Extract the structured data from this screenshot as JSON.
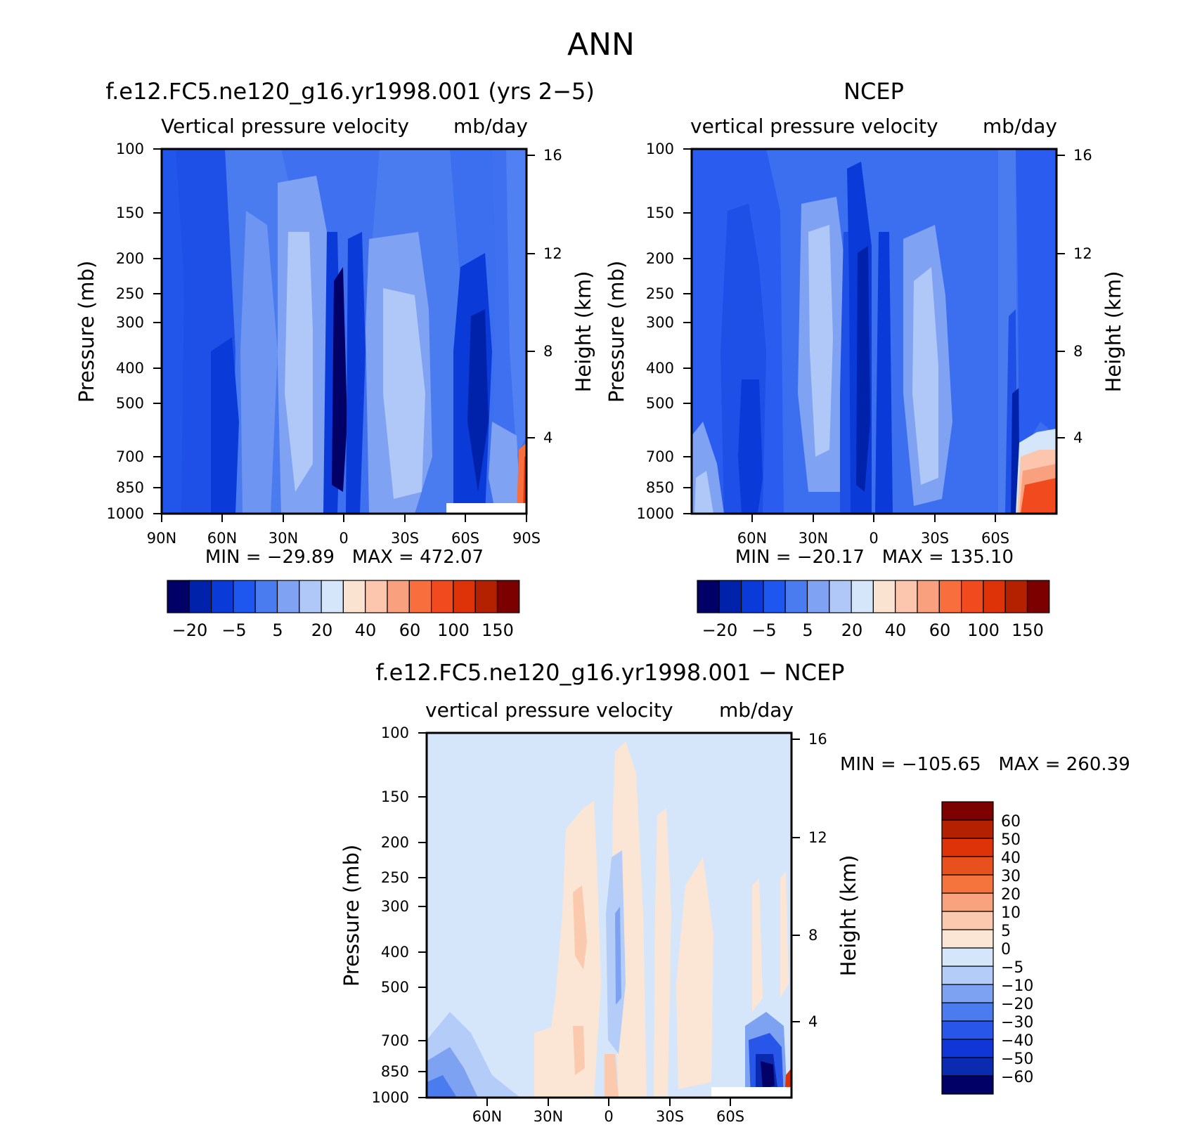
{
  "figure_title": "ANN",
  "colors": {
    "abs_scale": [
      "#000066",
      "#0022aa",
      "#0a3ad8",
      "#1e56f0",
      "#4a7cf0",
      "#7fa2f2",
      "#b0c8f8",
      "#d6e6fa",
      "#fbe3d2",
      "#fbc6ad",
      "#f9a07e",
      "#f86f3d",
      "#f04a1e",
      "#de3308",
      "#b32100",
      "#7d0000"
    ],
    "diff_scale": [
      "#000066",
      "#0a2ab0",
      "#1036d8",
      "#2856e8",
      "#4a7cf0",
      "#7ea2f2",
      "#b4ccf8",
      "#d6e6fa",
      "#fbe6d6",
      "#fbc9ae",
      "#f9a27e",
      "#f5743e",
      "#e8501e",
      "#de3308",
      "#b32100",
      "#7d0000"
    ]
  },
  "chart_data": [
    {
      "type": "contour",
      "title": "f.e12.FC5.ne120_g16.yr1998.001 (yrs 2-5)",
      "subtitle_left": "Vertical pressure velocity",
      "subtitle_right": "mb/day",
      "ylabel": "Pressure (mb)",
      "ylabel_right": "Height (km)",
      "x_ticks": [
        "90N",
        "60N",
        "30N",
        "0",
        "30S",
        "60S",
        "90S"
      ],
      "xlim": [
        90,
        -90
      ],
      "y_ticks": [
        "100",
        "150",
        "200",
        "250",
        "300",
        "400",
        "500",
        "700",
        "850",
        "1000"
      ],
      "ylim": [
        100,
        1000
      ],
      "y_right_ticks": [
        "16",
        "12",
        "8",
        "4"
      ],
      "stats": "MIN = -29.89   MAX = 472.07",
      "colorbar_labels": [
        "-20",
        "-5",
        "5",
        "20",
        "40",
        "60",
        "100",
        "150"
      ],
      "colorbar_levels": [
        -20,
        -10,
        -5,
        0,
        5,
        10,
        20,
        30,
        40,
        50,
        60,
        80,
        100,
        120,
        150
      ]
    },
    {
      "type": "contour",
      "title": "NCEP",
      "subtitle_left": "vertical pressure velocity",
      "subtitle_right": "mb/day",
      "ylabel": "Pressure (mb)",
      "ylabel_right": "Height (km)",
      "x_ticks": [
        "60N",
        "30N",
        "0",
        "30S",
        "60S"
      ],
      "xlim": [
        90,
        -90
      ],
      "y_ticks": [
        "100",
        "150",
        "200",
        "250",
        "300",
        "400",
        "500",
        "700",
        "850",
        "1000"
      ],
      "ylim": [
        100,
        1000
      ],
      "y_right_ticks": [
        "16",
        "12",
        "8",
        "4"
      ],
      "stats": "MIN = -20.17   MAX = 135.10",
      "colorbar_labels": [
        "-20",
        "-5",
        "5",
        "20",
        "40",
        "60",
        "100",
        "150"
      ],
      "colorbar_levels": [
        -20,
        -10,
        -5,
        0,
        5,
        10,
        20,
        30,
        40,
        50,
        60,
        80,
        100,
        120,
        150
      ]
    },
    {
      "type": "contour",
      "title": "f.e12.FC5.ne120_g16.yr1998.001 - NCEP",
      "subtitle_left": "vertical pressure velocity",
      "subtitle_right": "mb/day",
      "ylabel": "Pressure (mb)",
      "ylabel_right": "Height (km)",
      "x_ticks": [
        "60N",
        "30N",
        "0",
        "30S",
        "60S"
      ],
      "xlim": [
        90,
        -90
      ],
      "y_ticks": [
        "100",
        "150",
        "200",
        "250",
        "300",
        "400",
        "500",
        "700",
        "850",
        "1000"
      ],
      "ylim": [
        100,
        1000
      ],
      "y_right_ticks": [
        "16",
        "12",
        "8",
        "4"
      ],
      "stats": "MIN = -105.65   MAX = 260.39",
      "colorbar_labels": [
        "60",
        "50",
        "40",
        "30",
        "20",
        "10",
        "5",
        "0",
        "-5",
        "-10",
        "-20",
        "-30",
        "-40",
        "-50",
        "-60"
      ],
      "colorbar_levels": [
        -60,
        -50,
        -40,
        -30,
        -20,
        -10,
        -5,
        0,
        5,
        10,
        20,
        30,
        40,
        50,
        60
      ]
    }
  ]
}
